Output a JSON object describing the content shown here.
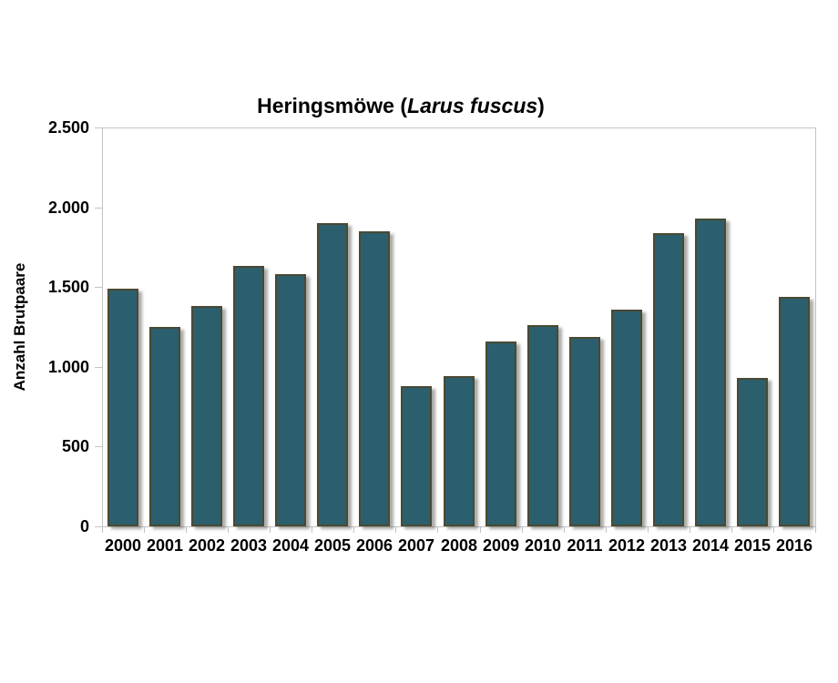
{
  "chart_data": {
    "type": "bar",
    "title": "Heringsmöwe (Larus fuscus)",
    "title_parts": {
      "prefix": "Heringsmöwe (",
      "italic": "Larus fuscus",
      "suffix": ")"
    },
    "ylabel": "Anzahl Brutpaare",
    "xlabel": "",
    "categories": [
      "2000",
      "2001",
      "2002",
      "2003",
      "2004",
      "2005",
      "2006",
      "2007",
      "2008",
      "2009",
      "2010",
      "2011",
      "2012",
      "2013",
      "2014",
      "2015",
      "2016"
    ],
    "values": [
      1490,
      1250,
      1380,
      1630,
      1580,
      1900,
      1850,
      880,
      940,
      1160,
      1260,
      1190,
      1360,
      1840,
      1930,
      930,
      1440
    ],
    "ylim": [
      0,
      2500
    ],
    "ytick_step": 500,
    "ytick_labels": [
      "0",
      "500",
      "1.000",
      "1.500",
      "2.000",
      "2.500"
    ],
    "grid": false,
    "legend": false,
    "colors": {
      "bar_fill": "#2B5F6E",
      "bar_border": "#4A4933",
      "bar_shadow": "rgba(100,100,92,0.55)",
      "axis_line": "#C4C4C4",
      "text": "#000000",
      "background": "#FFFFFF"
    }
  }
}
